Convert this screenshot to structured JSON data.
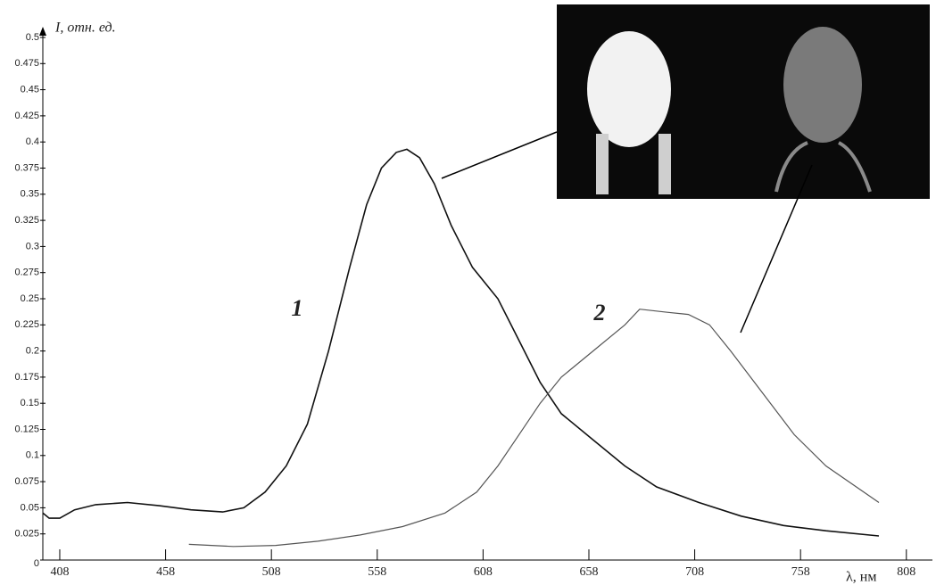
{
  "chart_data": {
    "type": "line",
    "y_label": "I, отн. ед.",
    "x_label": "λ, нм",
    "xlim": [
      400,
      822
    ],
    "ylim": [
      0,
      0.5
    ],
    "xticks": [
      408,
      458,
      508,
      558,
      608,
      658,
      708,
      758,
      808
    ],
    "yticks": [
      0,
      0.025,
      0.05,
      0.075,
      0.1,
      0.125,
      0.15,
      0.175,
      0.2,
      0.225,
      0.25,
      0.275,
      0.3,
      0.325,
      0.35,
      0.375,
      0.4,
      0.425,
      0.45,
      0.475,
      0.5
    ],
    "series": [
      {
        "name": "1",
        "color": "#111111",
        "x": [
          400,
          403,
          408,
          415,
          425,
          440,
          455,
          470,
          485,
          495,
          505,
          515,
          525,
          535,
          545,
          553,
          560,
          567,
          572,
          578,
          585,
          593,
          603,
          615,
          625,
          635,
          645,
          660,
          675,
          690,
          710,
          730,
          750,
          770,
          795
        ],
        "values": [
          0.045,
          0.04,
          0.04,
          0.048,
          0.053,
          0.055,
          0.052,
          0.048,
          0.046,
          0.05,
          0.065,
          0.09,
          0.13,
          0.2,
          0.28,
          0.34,
          0.375,
          0.39,
          0.393,
          0.385,
          0.36,
          0.32,
          0.28,
          0.25,
          0.21,
          0.17,
          0.14,
          0.115,
          0.09,
          0.07,
          0.055,
          0.042,
          0.033,
          0.028,
          0.023
        ]
      },
      {
        "name": "2",
        "color": "#555555",
        "x": [
          469,
          490,
          510,
          530,
          550,
          570,
          590,
          605,
          615,
          625,
          635,
          645,
          660,
          675,
          682,
          695,
          705,
          715,
          725,
          740,
          755,
          770,
          795
        ],
        "values": [
          0.015,
          0.013,
          0.014,
          0.018,
          0.024,
          0.032,
          0.045,
          0.065,
          0.09,
          0.12,
          0.15,
          0.175,
          0.2,
          0.225,
          0.24,
          0.237,
          0.235,
          0.225,
          0.2,
          0.16,
          0.12,
          0.09,
          0.055
        ]
      }
    ]
  }
}
